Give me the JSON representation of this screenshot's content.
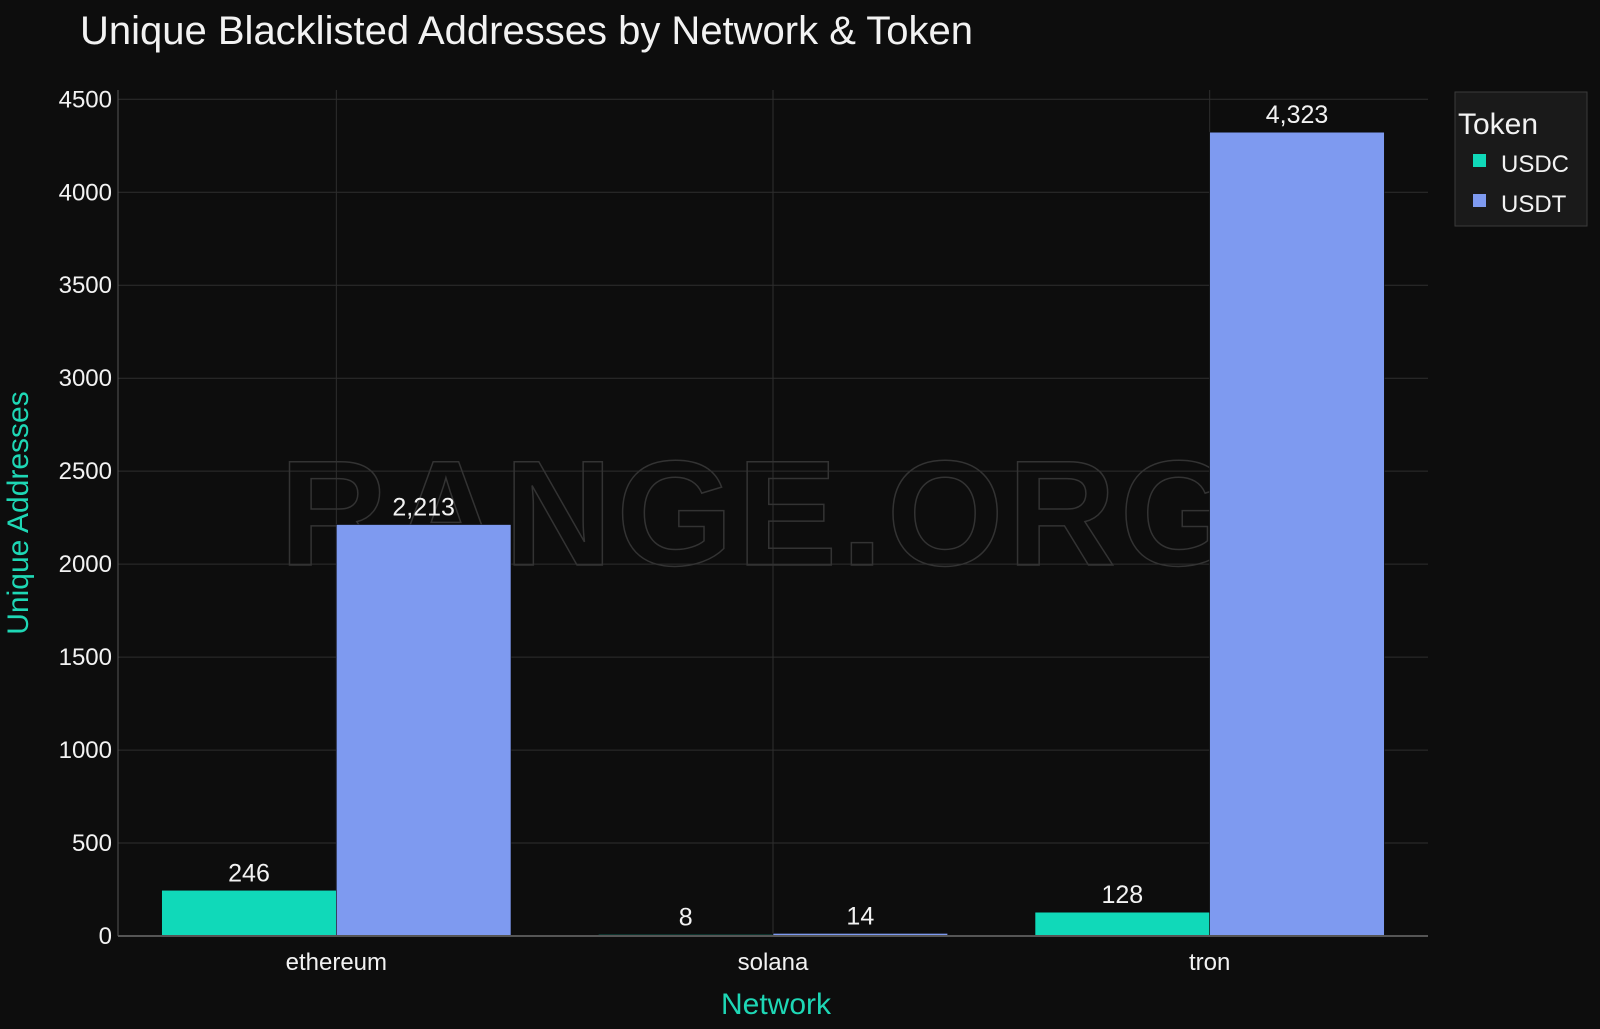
{
  "chart_data": {
    "type": "bar",
    "title": "Unique Blacklisted Addresses by Network & Token",
    "xlabel": "Network",
    "ylabel": "Unique Addresses",
    "categories": [
      "ethereum",
      "solana",
      "tron"
    ],
    "series": [
      {
        "name": "USDC",
        "values": [
          246,
          8,
          128
        ],
        "labels": [
          "246",
          "8",
          "128"
        ],
        "color": "#10d9b9"
      },
      {
        "name": "USDT",
        "values": [
          2213,
          14,
          4323
        ],
        "labels": [
          "2,213",
          "14",
          "4,323"
        ],
        "color": "#7e9af0"
      }
    ],
    "ylim": [
      0,
      4550
    ],
    "yticks": [
      0,
      500,
      1000,
      1500,
      2000,
      2500,
      3000,
      3500,
      4000,
      4500
    ],
    "grid": true,
    "legend": {
      "title": "Token",
      "placement": "top-right"
    },
    "watermark": "RANGE.ORG"
  }
}
